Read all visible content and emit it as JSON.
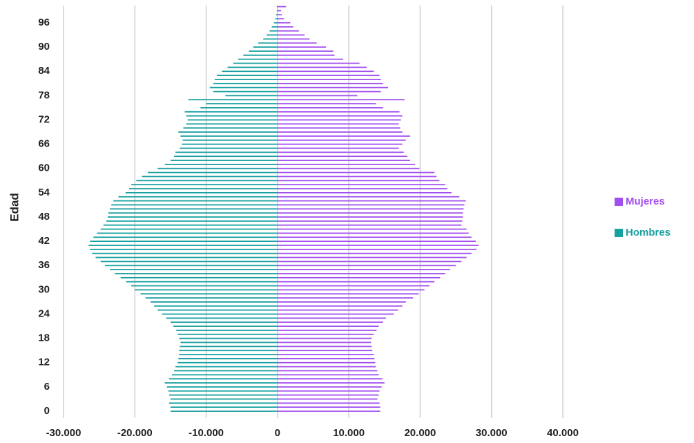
{
  "chart_data": {
    "type": "bar",
    "orientation": "horizontal",
    "y_label": "Edad",
    "categories": [
      "0",
      null,
      null,
      null,
      null,
      null,
      "6",
      null,
      null,
      null,
      null,
      null,
      "12",
      null,
      null,
      null,
      null,
      null,
      "18",
      null,
      null,
      null,
      null,
      null,
      "24",
      null,
      null,
      null,
      null,
      null,
      "30",
      null,
      null,
      null,
      null,
      null,
      "36",
      null,
      null,
      null,
      null,
      null,
      "42",
      null,
      null,
      null,
      null,
      null,
      "48",
      null,
      null,
      null,
      null,
      null,
      "54",
      null,
      null,
      null,
      null,
      null,
      "60",
      null,
      null,
      null,
      null,
      null,
      "66",
      null,
      null,
      null,
      null,
      null,
      "72",
      null,
      null,
      null,
      null,
      null,
      "78",
      null,
      null,
      null,
      null,
      null,
      "84",
      null,
      null,
      null,
      null,
      null,
      "90",
      null,
      null,
      null,
      null,
      null,
      "96",
      null,
      null,
      null,
      null
    ],
    "series": [
      {
        "name": "Mujeres",
        "color": "#a24ff0",
        "values": [
          14400,
          14400,
          14300,
          14000,
          14200,
          14300,
          14600,
          15000,
          14700,
          14200,
          14000,
          13800,
          13700,
          13600,
          13500,
          13300,
          13200,
          13100,
          13200,
          13500,
          13900,
          14200,
          14800,
          15200,
          16300,
          16900,
          17500,
          18000,
          19000,
          19800,
          20600,
          21300,
          22000,
          22800,
          23500,
          24200,
          25000,
          25800,
          26500,
          27200,
          27900,
          28200,
          27800,
          27200,
          26800,
          26500,
          25800,
          25900,
          26000,
          26000,
          26100,
          26200,
          26400,
          25500,
          24400,
          23800,
          23500,
          22700,
          22300,
          22000,
          19900,
          19300,
          18600,
          18200,
          17700,
          17000,
          17500,
          18000,
          18600,
          17500,
          17200,
          17000,
          17300,
          17500,
          17100,
          14800,
          13800,
          17800,
          11200,
          14500,
          15500,
          14800,
          14500,
          14300,
          13500,
          12500,
          11500,
          9200,
          8000,
          7800,
          6800,
          5500,
          4500,
          3800,
          3000,
          2200,
          1800,
          900,
          600,
          500,
          1200
        ]
      },
      {
        "name": "Hombres",
        "color": "#17a0a0",
        "values": [
          -15000,
          -15000,
          -15200,
          -15000,
          -15200,
          -15300,
          -15500,
          -15800,
          -15200,
          -14800,
          -14500,
          -14300,
          -14000,
          -13900,
          -13800,
          -13800,
          -13700,
          -13600,
          -13800,
          -14000,
          -14200,
          -14600,
          -15000,
          -15600,
          -16200,
          -16800,
          -17300,
          -17800,
          -18500,
          -19200,
          -20000,
          -20500,
          -21200,
          -22000,
          -22800,
          -23500,
          -24200,
          -24800,
          -25500,
          -26000,
          -26300,
          -26500,
          -26300,
          -25800,
          -25300,
          -24800,
          -24400,
          -24000,
          -23800,
          -23700,
          -23500,
          -23300,
          -23000,
          -22300,
          -21300,
          -20800,
          -20500,
          -19800,
          -19000,
          -18200,
          -16800,
          -15800,
          -15000,
          -14500,
          -14300,
          -13700,
          -13400,
          -13300,
          -13600,
          -13900,
          -13200,
          -12800,
          -12600,
          -12800,
          -13000,
          -10800,
          -10000,
          -12500,
          -7300,
          -9000,
          -9500,
          -9000,
          -8800,
          -8500,
          -7800,
          -7000,
          -6200,
          -5500,
          -4800,
          -4000,
          -3400,
          -2700,
          -2000,
          -1500,
          -1100,
          -800,
          -500,
          -300,
          -200,
          -100,
          -100
        ]
      }
    ],
    "xlim": [
      -30000,
      40000
    ],
    "xticks": [
      {
        "value": -30000,
        "label": "-30.000"
      },
      {
        "value": -20000,
        "label": "-20.000"
      },
      {
        "value": -10000,
        "label": "-10.000"
      },
      0,
      {
        "value": 10000,
        "label": "10.000"
      },
      {
        "value": 20000,
        "label": "20.000"
      },
      {
        "value": 30000,
        "label": "30.000"
      },
      {
        "value": 40000,
        "label": "40.000"
      }
    ],
    "grid": true,
    "legend": "right"
  }
}
